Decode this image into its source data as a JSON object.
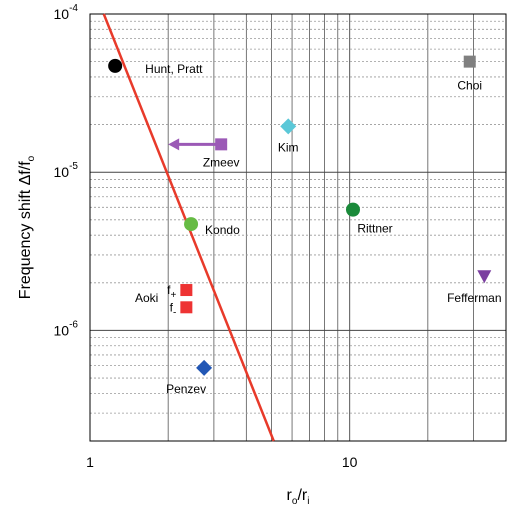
{
  "chart_data": {
    "type": "scatter",
    "title": "",
    "xlabel": {
      "main": "r",
      "sub1": "o",
      "sep": "/r",
      "sub2": "i"
    },
    "ylabel": {
      "main": "Frequency shift Δf/f",
      "sub": "o"
    },
    "x_scale": "log",
    "y_scale": "log",
    "xlim": [
      1,
      40
    ],
    "ylim": [
      2e-07,
      0.0001
    ],
    "grid": "major+minor",
    "x_ticks": [
      {
        "value": 1,
        "label": "1"
      },
      {
        "value": 10,
        "label": "10"
      }
    ],
    "y_ticks": [
      {
        "value": 0.0001,
        "base": "10",
        "exp": "-4"
      },
      {
        "value": 1e-05,
        "base": "10",
        "exp": "-5"
      },
      {
        "value": 1e-06,
        "base": "10",
        "exp": "-6"
      }
    ],
    "points": [
      {
        "label": "Hunt, Pratt",
        "x": 1.25,
        "y": 4.7e-05,
        "marker": "circle",
        "color": "#000000"
      },
      {
        "label": "Choi",
        "x": 29,
        "y": 5e-05,
        "marker": "square",
        "color": "#808080"
      },
      {
        "label": "Zmeev",
        "x": 3.2,
        "y": 1.5e-05,
        "marker": "square",
        "color": "#9b59b6",
        "arrow_to_x": 2.0
      },
      {
        "label": "Kim",
        "x": 5.8,
        "y": 1.95e-05,
        "marker": "diamond",
        "color": "#5bc8d8"
      },
      {
        "label": "Kondo",
        "x": 2.45,
        "y": 4.7e-06,
        "marker": "circle",
        "color": "#66bb44"
      },
      {
        "label": "Rittner",
        "x": 10.3,
        "y": 5.8e-06,
        "marker": "circle",
        "color": "#1a8a3a"
      },
      {
        "label": "Fefferman",
        "x": 33,
        "y": 2.2e-06,
        "marker": "triangle-down",
        "color": "#7b3fa0"
      },
      {
        "label": "Penzev",
        "x": 2.75,
        "y": 5.8e-07,
        "marker": "diamond",
        "color": "#2257b5"
      }
    ],
    "aoki": {
      "label": "Aoki",
      "color": "#ee3333",
      "points": [
        {
          "label": "f",
          "sub": "+",
          "x": 2.35,
          "y": 1.8e-06
        },
        {
          "label": "f",
          "sub": "-",
          "x": 2.35,
          "y": 1.4e-06
        }
      ]
    },
    "line": {
      "color": "#e83a2a",
      "points": [
        {
          "x": 1.13,
          "y": 0.0001
        },
        {
          "x": 5.1,
          "y": 2e-07
        }
      ]
    }
  }
}
